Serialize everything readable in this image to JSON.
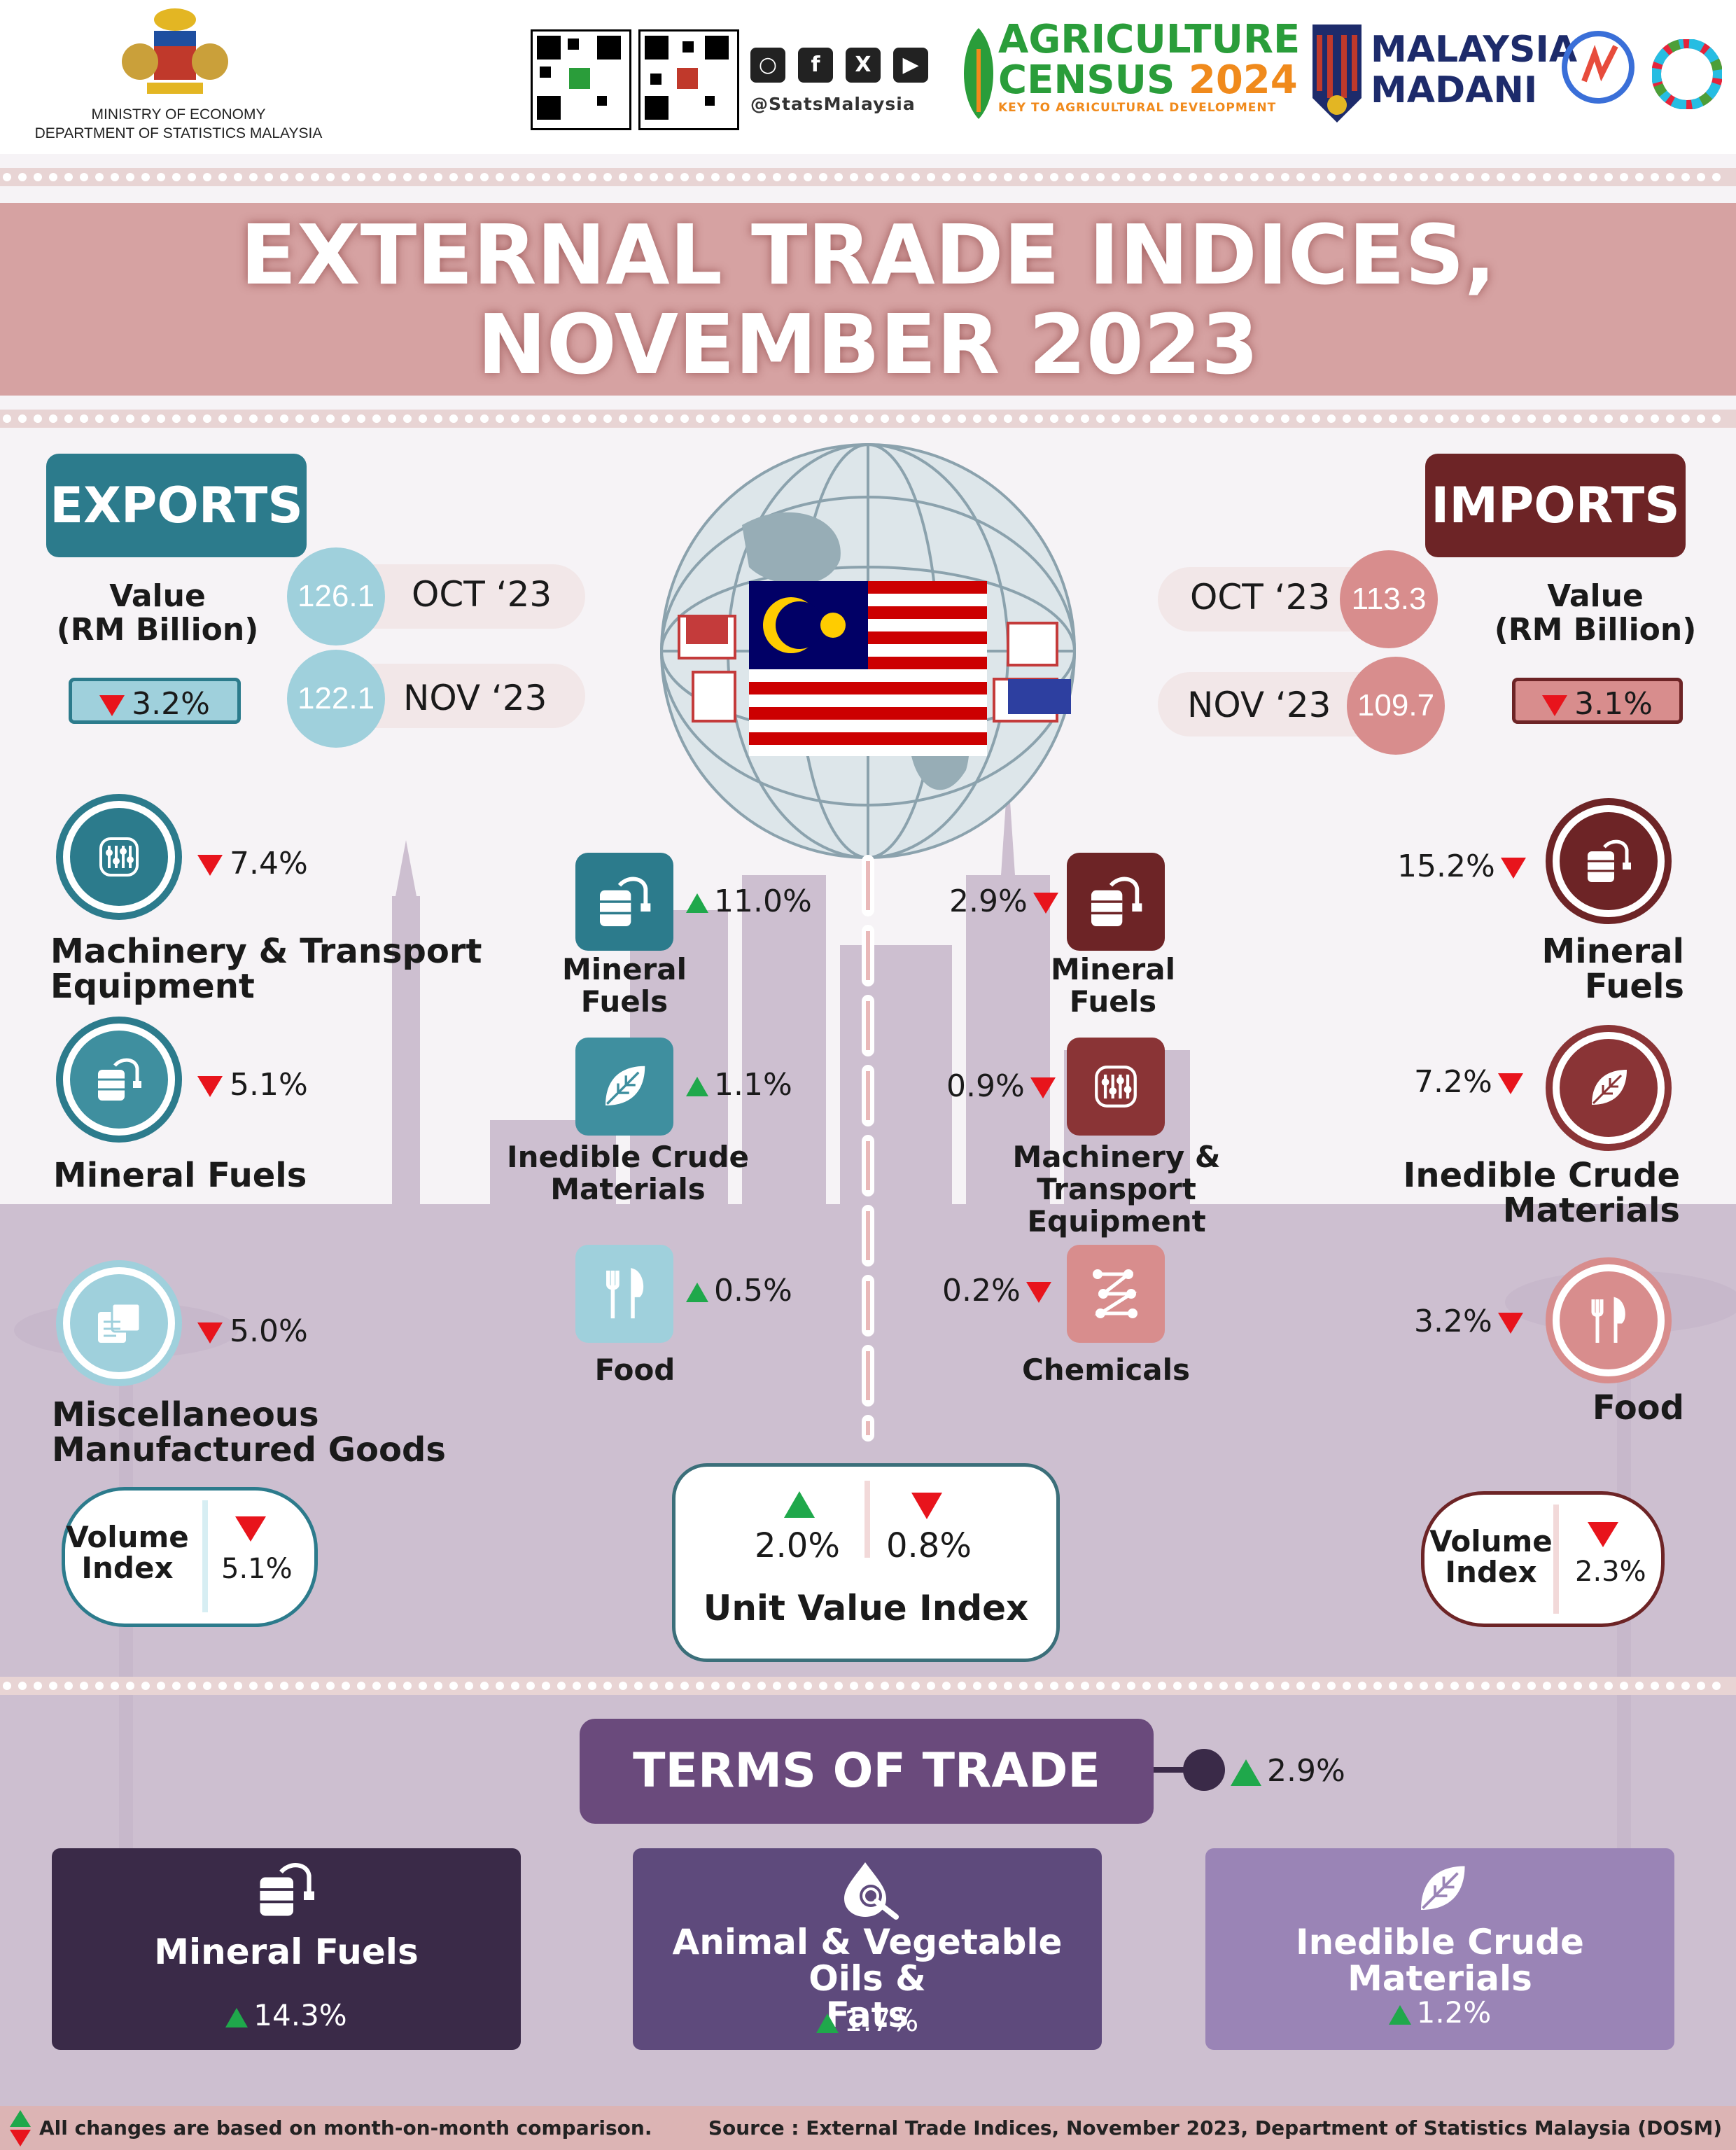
{
  "header": {
    "ministry_line1": "MINISTRY OF ECONOMY",
    "ministry_line2": "DEPARTMENT OF STATISTICS MALAYSIA",
    "social_handle": "@StatsMalaysia",
    "census_line1": "AGRICULTURE",
    "census_line2": "CENSUS",
    "census_year": "2024",
    "census_tagline": "KEY TO AGRICULTURAL DEVELOPMENT",
    "madani_line1": "MALAYSIA",
    "madani_line2": "MADANI"
  },
  "title": {
    "line1": "EXTERNAL TRADE INDICES,",
    "line2": "NOVEMBER 2023"
  },
  "exports": {
    "label": "EXPORTS",
    "value_head_line1": "Value",
    "value_head_line2": "(RM Billion)",
    "oct_value": "126.1",
    "oct_label": "OCT ‘23",
    "nov_value": "122.1",
    "nov_label": "NOV ‘23",
    "change": "3.2%",
    "categories": [
      {
        "name_line1": "Machinery & Transport",
        "name_line2": "Equipment",
        "change": "7.4%",
        "icon": "machinery-icon"
      },
      {
        "name_line1": "Mineral Fuels",
        "name_line2": "",
        "change": "5.1%",
        "icon": "fuel-barrel-icon"
      },
      {
        "name_line1": "Miscellaneous",
        "name_line2": "Manufactured Goods",
        "change": "5.0%",
        "icon": "goods-box-icon"
      }
    ],
    "volume_label_line1": "Volume",
    "volume_label_line2": "Index",
    "volume_change": "5.1%"
  },
  "imports": {
    "label": "IMPORTS",
    "value_head_line1": "Value",
    "value_head_line2": "(RM Billion)",
    "oct_value": "113.3",
    "oct_label": "OCT ‘23",
    "nov_value": "109.7",
    "nov_label": "NOV ‘23",
    "change": "3.1%",
    "categories": [
      {
        "name_line1": "Mineral Fuels",
        "name_line2": "",
        "change": "15.2%",
        "icon": "fuel-barrel-icon"
      },
      {
        "name_line1": "Inedible Crude",
        "name_line2": "Materials",
        "change": "7.2%",
        "icon": "leaf-icon"
      },
      {
        "name_line1": "Food",
        "name_line2": "",
        "change": "3.2%",
        "icon": "cutlery-icon"
      }
    ],
    "volume_label_line1": "Volume",
    "volume_label_line2": "Index",
    "volume_change": "2.3%"
  },
  "unit_value": {
    "export_items": [
      {
        "name_line1": "Mineral",
        "name_line2": "Fuels",
        "change": "11.0%",
        "icon": "fuel-barrel-icon"
      },
      {
        "name_line1": "Inedible Crude",
        "name_line2": "Materials",
        "change": "1.1%",
        "icon": "leaf-icon"
      },
      {
        "name_line1": "Food",
        "name_line2": "",
        "change": "0.5%",
        "icon": "cutlery-icon"
      }
    ],
    "import_items": [
      {
        "name_line1": "Mineral",
        "name_line2": "Fuels",
        "change": "2.9%",
        "icon": "fuel-barrel-icon"
      },
      {
        "name_line1": "Machinery & Transport",
        "name_line2": "Equipment",
        "change": "0.9%",
        "icon": "machinery-icon"
      },
      {
        "name_line1": "Chemicals",
        "name_line2": "",
        "change": "0.2%",
        "icon": "chemicals-icon"
      }
    ],
    "export_change": "2.0%",
    "import_change": "0.8%",
    "label": "Unit Value Index"
  },
  "terms_of_trade": {
    "label": "TERMS OF TRADE",
    "change": "2.9%",
    "items": [
      {
        "name_line1": "Mineral Fuels",
        "name_line2": "",
        "change": "14.3%",
        "icon": "fuel-barrel-icon"
      },
      {
        "name_line1": "Animal & Vegetable Oils &",
        "name_line2": "Fats",
        "change": "1.7%",
        "icon": "oil-drop-icon"
      },
      {
        "name_line1": "Inedible Crude",
        "name_line2": "Materials",
        "change": "1.2%",
        "icon": "leaf-icon"
      }
    ]
  },
  "footer": {
    "note": "All changes are based on month-on-month comparison.",
    "source": "Source : External Trade Indices, November 2023, Department of Statistics Malaysia (DOSM)"
  },
  "colors": {
    "exports_teal": "#2c7b8c",
    "exports_light": "#9fd0dc",
    "imports_maroon": "#6d2426",
    "imports_light": "#d88d8d",
    "terms_purple": "#6a4a7c",
    "down_red": "#e8141c",
    "up_green": "#1fa84b"
  }
}
